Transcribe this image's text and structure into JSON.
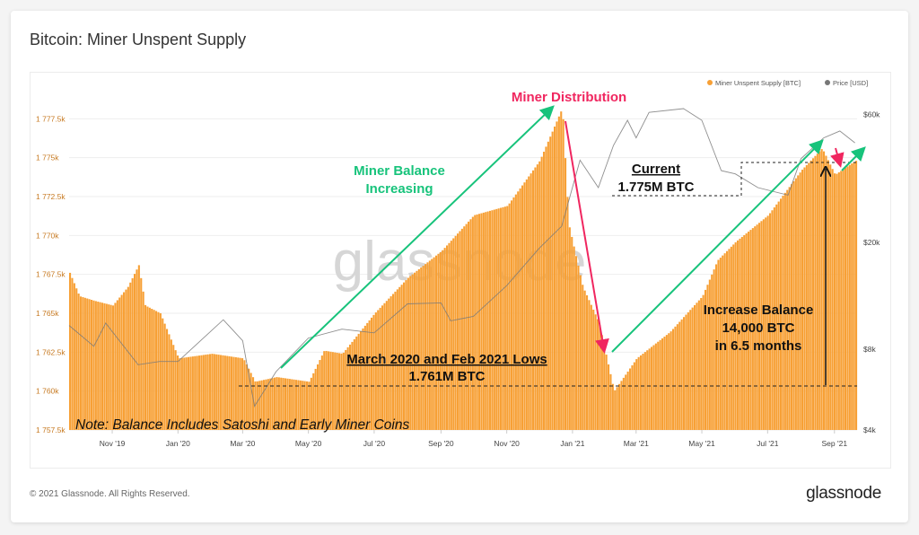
{
  "title": "Bitcoin: Miner Unspent Supply",
  "footer": "© 2021 Glassnode. All Rights Reserved.",
  "logo": "glassnode",
  "watermark": "glassnode",
  "legend": [
    {
      "label": "Miner Unspent Supply [BTC]",
      "color": "#f7a035"
    },
    {
      "label": "Price [USD]",
      "color": "#777777"
    }
  ],
  "annotations": {
    "distribution": "Miner Distribution",
    "balance_line1": "Miner Balance",
    "balance_line2": "Increasing",
    "current_line1": "Current",
    "current_line2": "1.775M BTC",
    "lows_line1": "March 2020 and Feb 2021 Lows",
    "lows_line2": "1.761M BTC",
    "increase_line1": "Increase Balance",
    "increase_line2": "14,000 BTC",
    "increase_line3": "in 6.5 months",
    "note": "Note: Balance Includes Satoshi and Early Miner Coins"
  },
  "colors": {
    "supply": "#f7a035",
    "price": "#777777",
    "green_arrow": "#17c37b",
    "red_arrow": "#f0265f",
    "left_axis": "#c77a22"
  },
  "chart_data": {
    "type": "bar",
    "title": "Bitcoin: Miner Unspent Supply",
    "grid": true,
    "legend_position": "top-right",
    "xlim": [
      "2019-09-22",
      "2021-09-22"
    ],
    "x_ticks": [
      "Nov '19",
      "Jan '20",
      "Mar '20",
      "May '20",
      "Jul '20",
      "Sep '20",
      "Nov '20",
      "Jan '21",
      "Mar '21",
      "May '21",
      "Jul '21",
      "Sep '21"
    ],
    "x_tick_dates": [
      "2019-11-01",
      "2020-01-01",
      "2020-03-01",
      "2020-05-01",
      "2020-07-01",
      "2020-09-01",
      "2020-11-01",
      "2021-01-01",
      "2021-03-01",
      "2021-05-01",
      "2021-07-01",
      "2021-09-01"
    ],
    "y_left": {
      "unit": "BTC (thousands)",
      "ylim": [
        1757.5,
        1780
      ],
      "ticks": [
        "1 757.5k",
        "1 760k",
        "1 762.5k",
        "1 765k",
        "1 767.5k",
        "1 770k",
        "1 772.5k",
        "1 775k",
        "1 777.5k"
      ],
      "tick_values": [
        1757.5,
        1760,
        1762.5,
        1765,
        1767.5,
        1770,
        1772.5,
        1775,
        1777.5
      ]
    },
    "y_right": {
      "unit": "USD (thousands)",
      "scale": "log",
      "ylim": [
        4,
        70
      ],
      "ticks": [
        "$4k",
        "$8k",
        "$20k",
        "$60k"
      ],
      "tick_values": [
        4,
        8,
        20,
        60
      ]
    },
    "series": [
      {
        "name": "Miner Unspent Supply [BTC]",
        "type": "bar",
        "axis": "left",
        "points": [
          [
            "2019-09-22",
            1767.6
          ],
          [
            "2019-10-01",
            1766.1
          ],
          [
            "2019-10-15",
            1765.8
          ],
          [
            "2019-11-01",
            1765.5
          ],
          [
            "2019-11-15",
            1766.7
          ],
          [
            "2019-11-25",
            1768.1
          ],
          [
            "2019-12-01",
            1765.5
          ],
          [
            "2019-12-15",
            1765.0
          ],
          [
            "2020-01-01",
            1762.1
          ],
          [
            "2020-02-01",
            1762.4
          ],
          [
            "2020-03-01",
            1762.1
          ],
          [
            "2020-03-12",
            1760.6
          ],
          [
            "2020-04-01",
            1760.9
          ],
          [
            "2020-05-01",
            1760.6
          ],
          [
            "2020-05-15",
            1762.6
          ],
          [
            "2020-06-01",
            1762.4
          ],
          [
            "2020-07-01",
            1765.0
          ],
          [
            "2020-08-01",
            1767.3
          ],
          [
            "2020-09-01",
            1769.0
          ],
          [
            "2020-10-01",
            1771.3
          ],
          [
            "2020-11-01",
            1771.9
          ],
          [
            "2020-12-01",
            1774.8
          ],
          [
            "2020-12-22",
            1778.2
          ],
          [
            "2020-12-28",
            1770.7
          ],
          [
            "2021-01-10",
            1766.7
          ],
          [
            "2021-01-25",
            1764.4
          ],
          [
            "2021-02-08",
            1760.0
          ],
          [
            "2021-03-01",
            1762.1
          ],
          [
            "2021-04-01",
            1763.8
          ],
          [
            "2021-05-01",
            1766.1
          ],
          [
            "2021-05-15",
            1768.4
          ],
          [
            "2021-06-01",
            1769.6
          ],
          [
            "2021-07-01",
            1771.3
          ],
          [
            "2021-08-01",
            1774.2
          ],
          [
            "2021-08-20",
            1775.6
          ],
          [
            "2021-09-01",
            1773.9
          ],
          [
            "2021-09-20",
            1774.8
          ]
        ]
      },
      {
        "name": "Price [USD]",
        "type": "line",
        "axis": "right",
        "points": [
          [
            "2019-09-22",
            9.8
          ],
          [
            "2019-10-15",
            8.2
          ],
          [
            "2019-10-26",
            10.0
          ],
          [
            "2019-11-25",
            7.0
          ],
          [
            "2019-12-15",
            7.2
          ],
          [
            "2020-01-01",
            7.2
          ],
          [
            "2020-02-12",
            10.3
          ],
          [
            "2020-03-01",
            8.6
          ],
          [
            "2020-03-12",
            4.9
          ],
          [
            "2020-04-01",
            6.6
          ],
          [
            "2020-05-01",
            8.8
          ],
          [
            "2020-06-01",
            9.5
          ],
          [
            "2020-07-01",
            9.2
          ],
          [
            "2020-08-01",
            11.8
          ],
          [
            "2020-09-01",
            11.9
          ],
          [
            "2020-09-10",
            10.2
          ],
          [
            "2020-10-01",
            10.6
          ],
          [
            "2020-11-01",
            13.8
          ],
          [
            "2020-12-01",
            19.0
          ],
          [
            "2020-12-22",
            23.0
          ],
          [
            "2021-01-08",
            40.5
          ],
          [
            "2021-01-25",
            32.0
          ],
          [
            "2021-02-08",
            46.0
          ],
          [
            "2021-02-21",
            57.0
          ],
          [
            "2021-03-01",
            49.0
          ],
          [
            "2021-03-13",
            61.0
          ],
          [
            "2021-04-14",
            63.0
          ],
          [
            "2021-05-01",
            57.0
          ],
          [
            "2021-05-19",
            37.0
          ],
          [
            "2021-06-01",
            36.0
          ],
          [
            "2021-06-22",
            32.0
          ],
          [
            "2021-07-20",
            30.0
          ],
          [
            "2021-08-01",
            41.0
          ],
          [
            "2021-08-22",
            49.0
          ],
          [
            "2021-09-06",
            52.0
          ],
          [
            "2021-09-20",
            47.0
          ]
        ]
      }
    ]
  }
}
